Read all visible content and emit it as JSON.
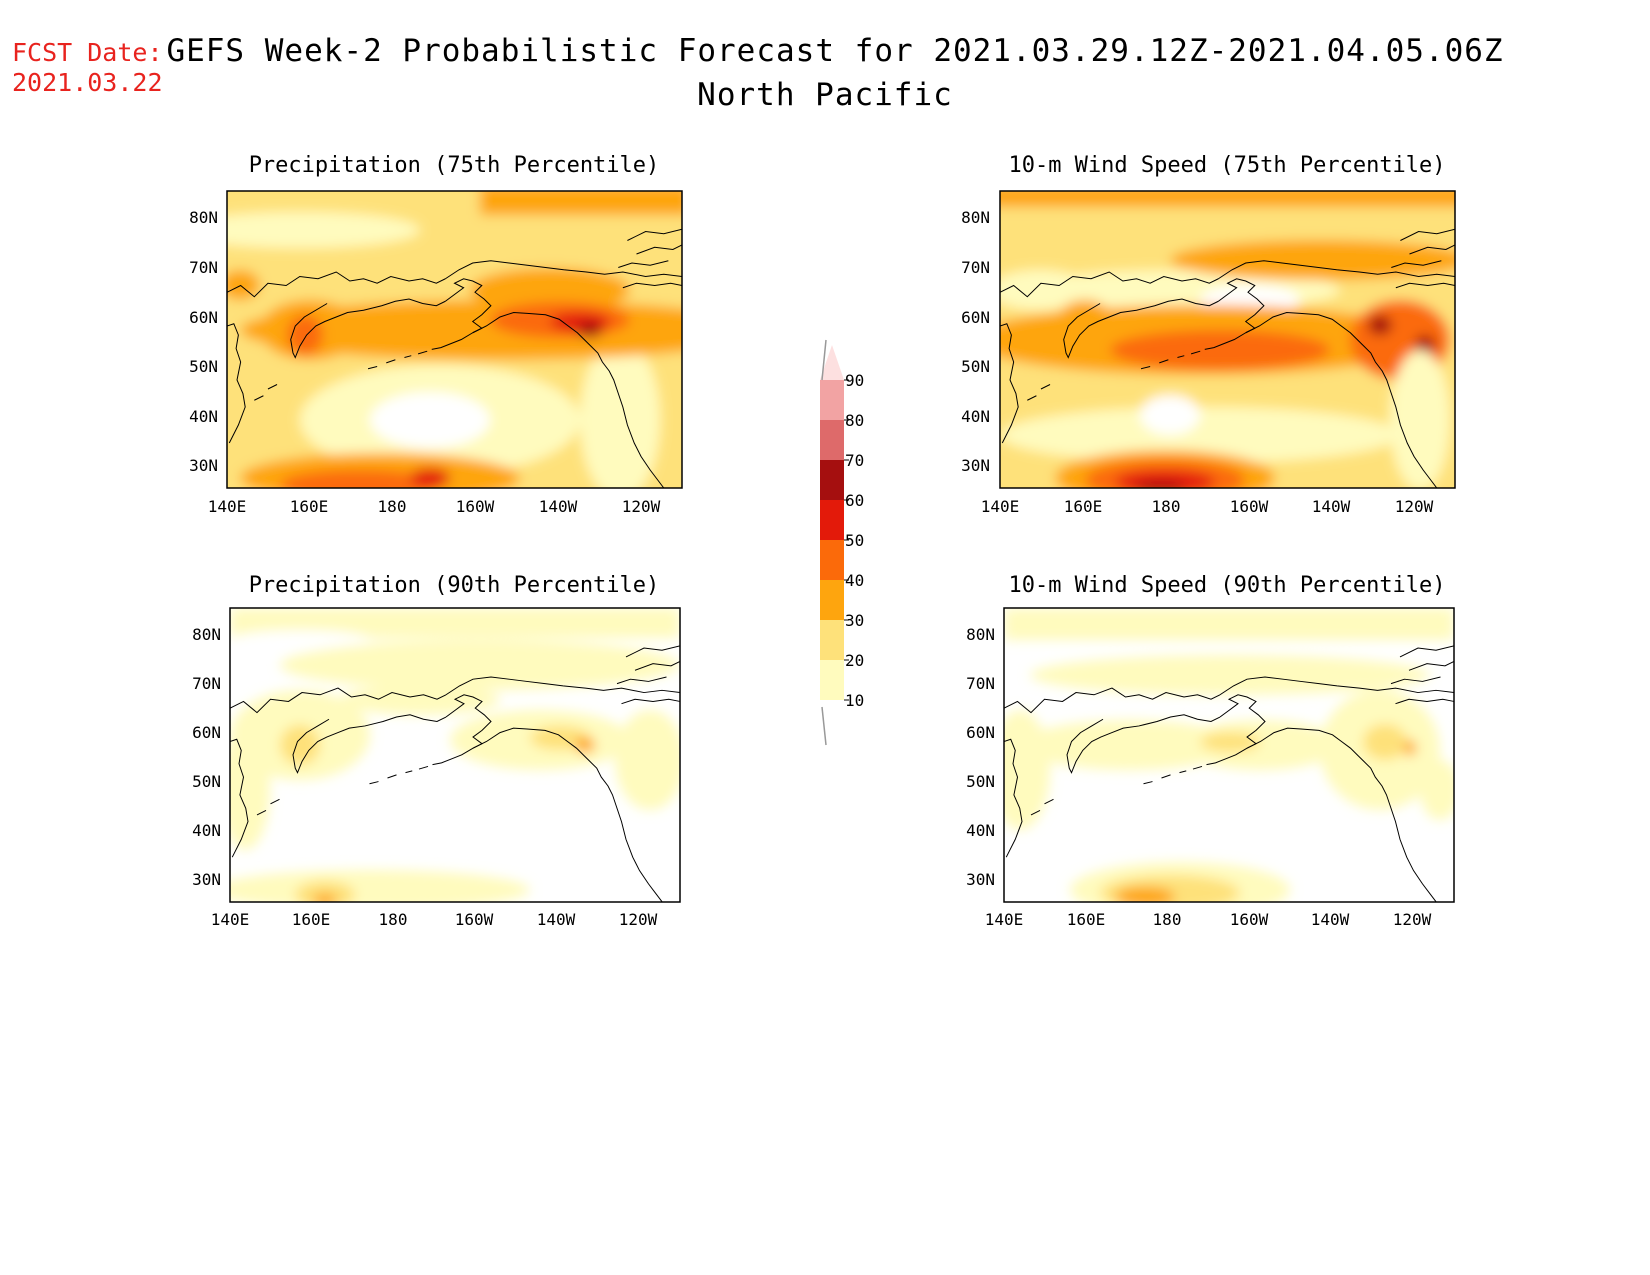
{
  "header": {
    "fcst_label": "FCST Date:",
    "fcst_date": "2021.03.22",
    "title": "GEFS Week-2 Probabilistic Forecast for 2021.03.29.12Z-2021.04.05.06Z",
    "region": "North Pacific"
  },
  "axes": {
    "lat_ticks": [
      "80N",
      "70N",
      "60N",
      "50N",
      "40N",
      "30N"
    ],
    "lon_ticks": [
      "140E",
      "160E",
      "180",
      "160W",
      "140W",
      "120W"
    ]
  },
  "panels": [
    {
      "id": "precip-75",
      "title": "Precipitation (75th Percentile)"
    },
    {
      "id": "wind-75",
      "title": "10-m Wind Speed (75th Percentile)"
    },
    {
      "id": "precip-90",
      "title": "Precipitation (90th Percentile)"
    },
    {
      "id": "wind-90",
      "title": "10-m Wind Speed (90th Percentile)"
    }
  ],
  "colorbar": {
    "labels": [
      "90",
      "80",
      "70",
      "60",
      "50",
      "40",
      "30",
      "20",
      "10"
    ],
    "colors": [
      "#f2a3a3",
      "#de6a6a",
      "#a50f0f",
      "#e31a0a",
      "#fb6a0a",
      "#fea50e",
      "#fee17a",
      "#fffbbe"
    ]
  },
  "colors": {
    "c10": "#fffbbe",
    "c20": "#fee17a",
    "c30": "#fea50e",
    "c40": "#fb6a0a",
    "c50": "#e31a0a",
    "c60": "#a50f0f",
    "fcst_text": "#e8231e"
  }
}
